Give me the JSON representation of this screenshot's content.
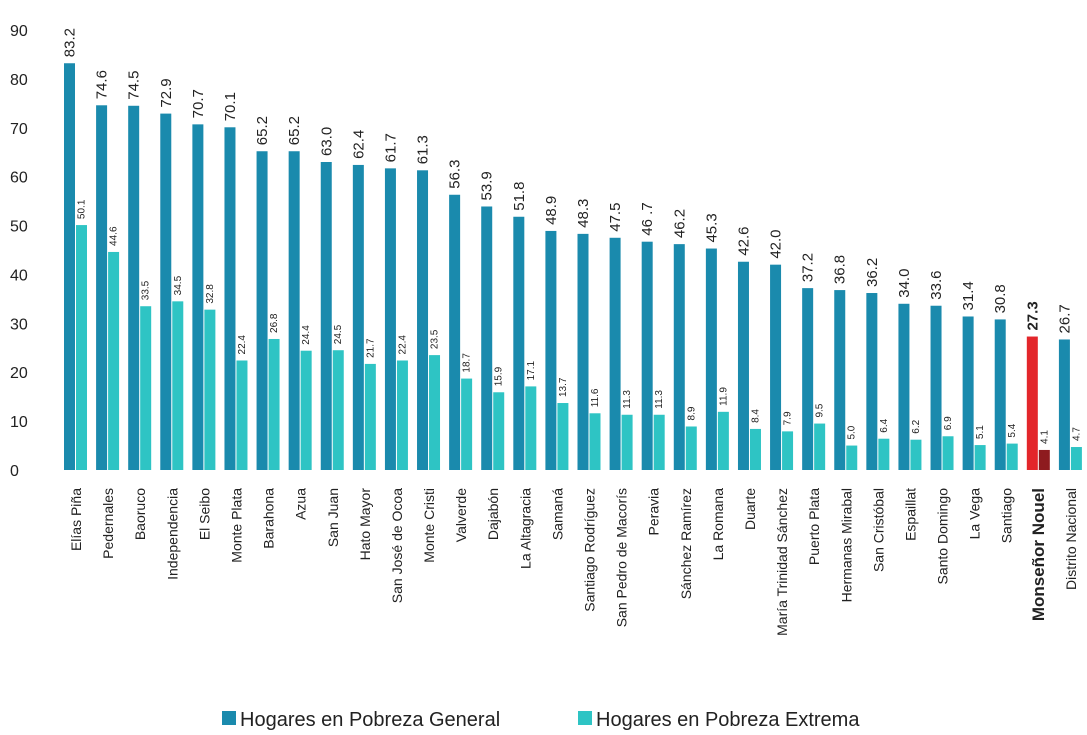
{
  "chart_data": {
    "type": "bar",
    "categories": [
      "Elías Piña",
      "Pedernales",
      "Baoruco",
      "Independencia",
      "El Seibo",
      "Monte Plata",
      "Barahona",
      "Azua",
      "San Juan",
      "Hato Mayor",
      "San José de Ocoa",
      "Monte Cristi",
      "Valverde",
      "Dajabón",
      "La Altagracia",
      "Samaná",
      "Santiago Rodríguez",
      "San Pedro de Macorís",
      "Peravia",
      "Sánchez Ramírez",
      "La Romana",
      "Duarte",
      "María Trinidad Sánchez",
      "Puerto Plata",
      "Hermanas Mirabal",
      "San Cristóbal",
      "Espaillat",
      "Santo Domingo",
      "La Vega",
      "Santiago",
      "Monseñor Nouel",
      "Distrito Nacional"
    ],
    "series": [
      {
        "name": "Hogares en Pobreza General",
        "color": "#1a8aad",
        "values": [
          83.2,
          74.6,
          74.5,
          72.9,
          70.7,
          70.1,
          65.2,
          65.2,
          63.0,
          62.4,
          61.7,
          61.3,
          56.3,
          53.9,
          51.8,
          48.9,
          48.3,
          47.5,
          46.7,
          46.2,
          45.3,
          42.6,
          42.0,
          37.2,
          36.8,
          36.2,
          34.0,
          33.6,
          31.4,
          30.8,
          27.3,
          26.7
        ],
        "value_labels": [
          "83.2",
          "74.6",
          "74.5",
          "72.9",
          "70.7",
          "70.1",
          "65.2",
          "65.2",
          "63.0",
          "62.4",
          "61.7",
          "61.3",
          "56.3",
          "53.9",
          "51.8",
          "48.9",
          "48.3",
          "47.5",
          "46 .7",
          "46.2",
          "45.3",
          "42.6",
          "42.0",
          "37.2",
          "36.8",
          "36.2",
          "34.0",
          "33.6",
          "31.4",
          "30.8",
          "27.3",
          "26.7"
        ]
      },
      {
        "name": "Hogares en Pobreza Extrema",
        "color": "#2ec4c4",
        "values": [
          50.1,
          44.6,
          33.5,
          34.5,
          32.8,
          22.4,
          26.8,
          24.4,
          24.5,
          21.7,
          22.4,
          23.5,
          18.7,
          15.9,
          17.1,
          13.7,
          11.6,
          11.3,
          11.3,
          8.9,
          11.9,
          8.4,
          7.9,
          9.5,
          5.0,
          6.4,
          6.2,
          6.9,
          5.1,
          5.4,
          4.1,
          4.7
        ],
        "value_labels": [
          "50.1",
          "44.6",
          "33.5",
          "34.5",
          "32.8",
          "22.4",
          "26.8",
          "24.4",
          "24.5",
          "21.7",
          "22.4",
          "23.5",
          "18.7",
          "15.9",
          "17.1",
          "13.7",
          "11.6",
          "11.3",
          "11.3",
          "8.9",
          "11.9",
          "8.4",
          "7.9",
          "9.5",
          "5.0",
          "6.4",
          "6.2",
          "6.9",
          "5.1",
          "5.4",
          "4.1",
          "4.7"
        ]
      }
    ],
    "highlight": {
      "index": 30,
      "colors": [
        "#e3262b",
        "#8e1b1f"
      ]
    },
    "ylim": [
      0,
      90
    ],
    "yticks": [
      0,
      10,
      20,
      30,
      40,
      50,
      60,
      70,
      80,
      90
    ],
    "grid": false
  }
}
